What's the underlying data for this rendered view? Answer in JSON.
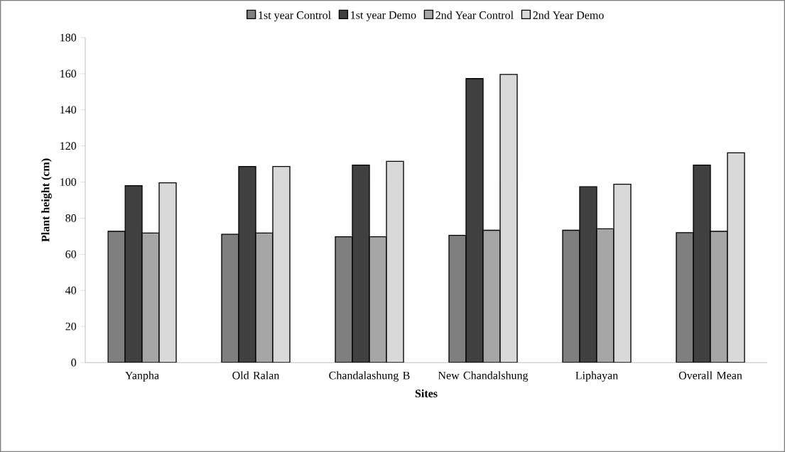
{
  "chart_data": {
    "type": "bar",
    "xlabel": "Sites",
    "ylabel": "Plant height (cm)",
    "categories": [
      "Yanpha",
      "Old Ralan",
      "Chandalashung B",
      "New Chandalshung",
      "Liphayan",
      "Overall Mean"
    ],
    "series": [
      {
        "name": "1st year Control",
        "color": "#7f7f7f",
        "values": [
          72.7,
          71.1,
          69.7,
          70.5,
          73.3,
          72.0
        ]
      },
      {
        "name": "1st year Demo",
        "color": "#404040",
        "values": [
          98.0,
          108.6,
          109.4,
          157.3,
          97.4,
          109.4
        ]
      },
      {
        "name": "2nd Year Control",
        "color": "#a6a6a6",
        "values": [
          71.8,
          71.8,
          69.7,
          73.3,
          74.1,
          72.7
        ]
      },
      {
        "name": "2nd Year Demo",
        "color": "#d9d9d9",
        "values": [
          99.6,
          108.6,
          111.5,
          159.6,
          98.8,
          116.2
        ]
      }
    ],
    "ylim": [
      0,
      180
    ],
    "yticks": [
      0,
      20,
      40,
      60,
      80,
      100,
      120,
      140,
      160,
      180
    ],
    "legend": "top"
  }
}
